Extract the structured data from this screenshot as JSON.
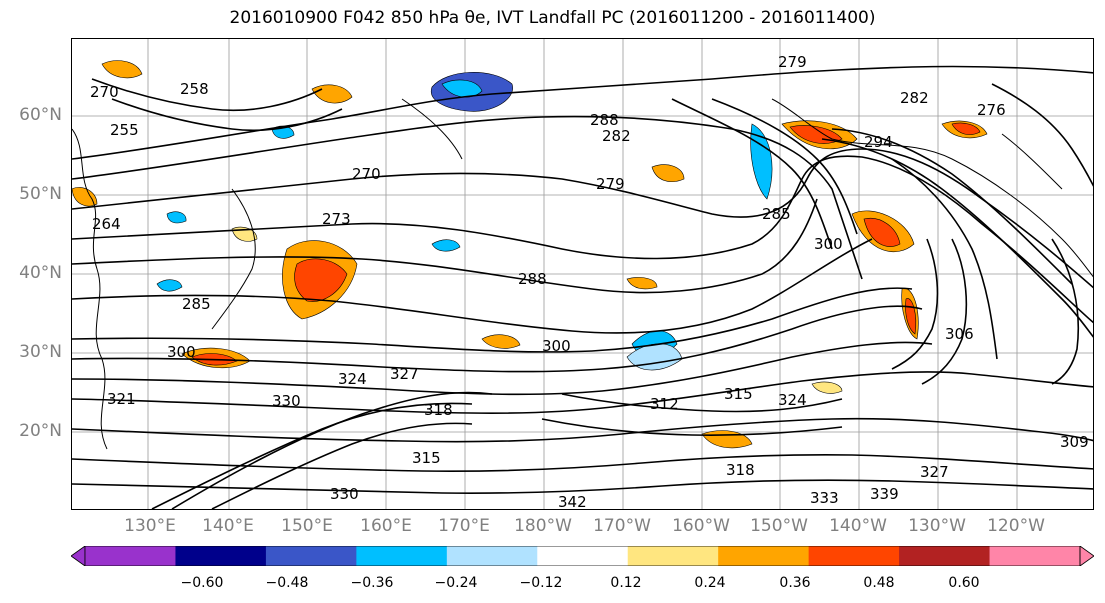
{
  "title": "2016010900 F042 850 hPa θe, IVT Landfall PC (2016011200 - 2016011400)",
  "map": {
    "lat_labels": [
      "60°N",
      "50°N",
      "40°N",
      "30°N",
      "20°N"
    ],
    "lon_labels": [
      "130°E",
      "140°E",
      "150°E",
      "160°E",
      "170°E",
      "180°W",
      "170°W",
      "160°W",
      "150°W",
      "140°W",
      "130°W",
      "120°W"
    ],
    "contour_labels": [
      "270",
      "258",
      "255",
      "264",
      "270",
      "273",
      "285",
      "288",
      "300",
      "300",
      "321",
      "324",
      "327",
      "330",
      "318",
      "315",
      "312",
      "315",
      "324",
      "318",
      "330",
      "333",
      "339",
      "342",
      "327",
      "309",
      "306",
      "282",
      "288",
      "276",
      "279",
      "282",
      "294",
      "300",
      "279",
      "285"
    ]
  },
  "colorbar": {
    "ticks": [
      "−0.60",
      "−0.48",
      "−0.36",
      "−0.24",
      "−0.12",
      "0.12",
      "0.24",
      "0.36",
      "0.48",
      "0.60"
    ],
    "colors": [
      "#9932cc",
      "#00008b",
      "#3a56c8",
      "#00bfff",
      "#b0e2ff",
      "#ffffff",
      "#ffe680",
      "#ffa500",
      "#ff4500",
      "#b22222",
      "#ff85a8"
    ]
  }
}
